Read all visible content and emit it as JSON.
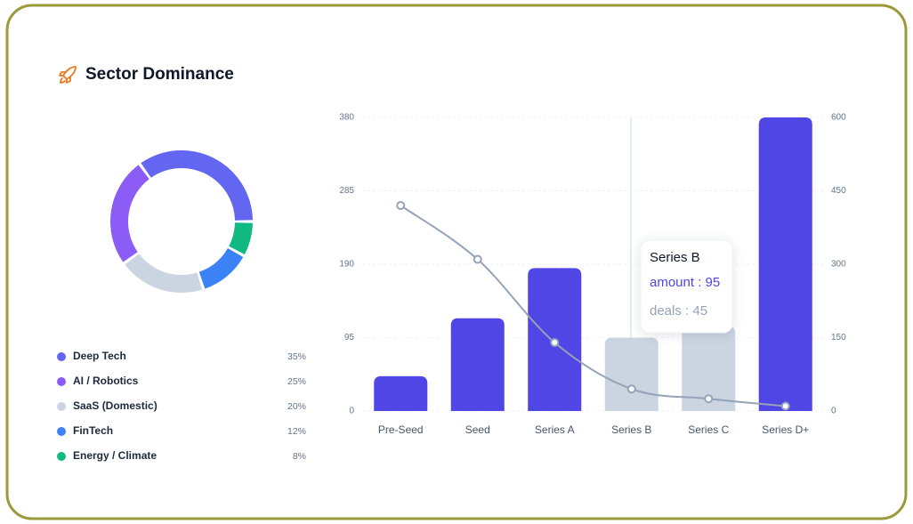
{
  "chart_data": [
    {
      "type": "pie",
      "title": "Sector Dominance",
      "categories": [
        "Deep Tech",
        "AI / Robotics",
        "SaaS (Domestic)",
        "FinTech",
        "Energy / Climate"
      ],
      "values": [
        35,
        25,
        20,
        12,
        8
      ],
      "value_labels": [
        "35%",
        "25%",
        "20%",
        "12%",
        "8%"
      ],
      "colors": [
        "#6366f1",
        "#8b5cf6",
        "#cbd5e1",
        "#3b82f6",
        "#10b981"
      ]
    },
    {
      "type": "bar_line",
      "categories": [
        "Pre-Seed",
        "Seed",
        "Series A",
        "Series B",
        "Series C",
        "Series D+"
      ],
      "series": [
        {
          "name": "amount",
          "type": "bar",
          "colors": [
            "#4f46e5",
            "#4f46e5",
            "#4f46e5",
            "#cbd5e1",
            "#cbd5e1",
            "#4f46e5"
          ],
          "values": [
            45,
            120,
            185,
            95,
            110,
            380
          ]
        },
        {
          "name": "deals",
          "type": "line",
          "axis": "y2",
          "color": "#94a3b8",
          "values": [
            420,
            310,
            140,
            45,
            25,
            10
          ]
        }
      ],
      "ylim": [
        0,
        380
      ],
      "yticks": [
        0,
        95,
        190,
        285,
        380
      ],
      "y2lim": [
        0,
        600
      ],
      "y2ticks": [
        0,
        150,
        300,
        450,
        600
      ],
      "grid": true,
      "tooltip": {
        "title": "Series B",
        "lines": [
          "amount : 95",
          "deals : 45"
        ]
      }
    }
  ]
}
